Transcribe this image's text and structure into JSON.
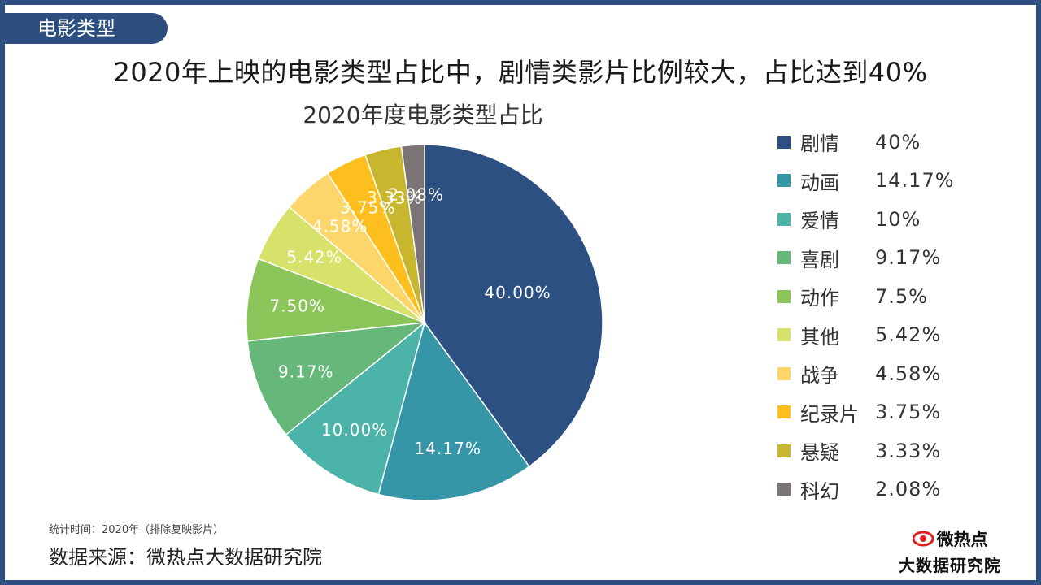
{
  "tag": "电影类型",
  "headline": "2020年上映的电影类型占比中，剧情类影片比例较大，占比达到40%",
  "note": "统计时间：2020年（排除复映影片）",
  "source": "数据来源：微热点大数据研究院",
  "brand": {
    "line1": "微热点",
    "line2": "大数据研究院",
    "eye_color": "#e02020"
  },
  "chart_data": {
    "type": "pie",
    "title": "2020年度电影类型占比",
    "legend_position": "right",
    "slices": [
      {
        "name": "剧情",
        "value": 40.0,
        "label": "40.00%",
        "legend_value": "40%",
        "color": "#2d5083"
      },
      {
        "name": "动画",
        "value": 14.17,
        "label": "14.17%",
        "legend_value": "14.17%",
        "color": "#3696a8"
      },
      {
        "name": "爱情",
        "value": 10.0,
        "label": "10.00%",
        "legend_value": "10%",
        "color": "#4bb3a8"
      },
      {
        "name": "喜剧",
        "value": 9.17,
        "label": "9.17%",
        "legend_value": "9.17%",
        "color": "#66b77a"
      },
      {
        "name": "动作",
        "value": 7.5,
        "label": "7.50%",
        "legend_value": "7.5%",
        "color": "#8cc55a"
      },
      {
        "name": "其他",
        "value": 5.42,
        "label": "5.42%",
        "legend_value": "5.42%",
        "color": "#d7e26a"
      },
      {
        "name": "战争",
        "value": 4.58,
        "label": "4.58%",
        "legend_value": "4.58%",
        "color": "#fdd66b"
      },
      {
        "name": "纪录片",
        "value": 3.75,
        "label": "3.75%",
        "legend_value": "3.75%",
        "color": "#fcbf1e"
      },
      {
        "name": "悬疑",
        "value": 3.33,
        "label": "3.33%",
        "legend_value": "3.33%",
        "color": "#c9b62f"
      },
      {
        "name": "科幻",
        "value": 2.08,
        "label": "2.08%",
        "legend_value": "2.08%",
        "color": "#7a7474"
      }
    ]
  }
}
